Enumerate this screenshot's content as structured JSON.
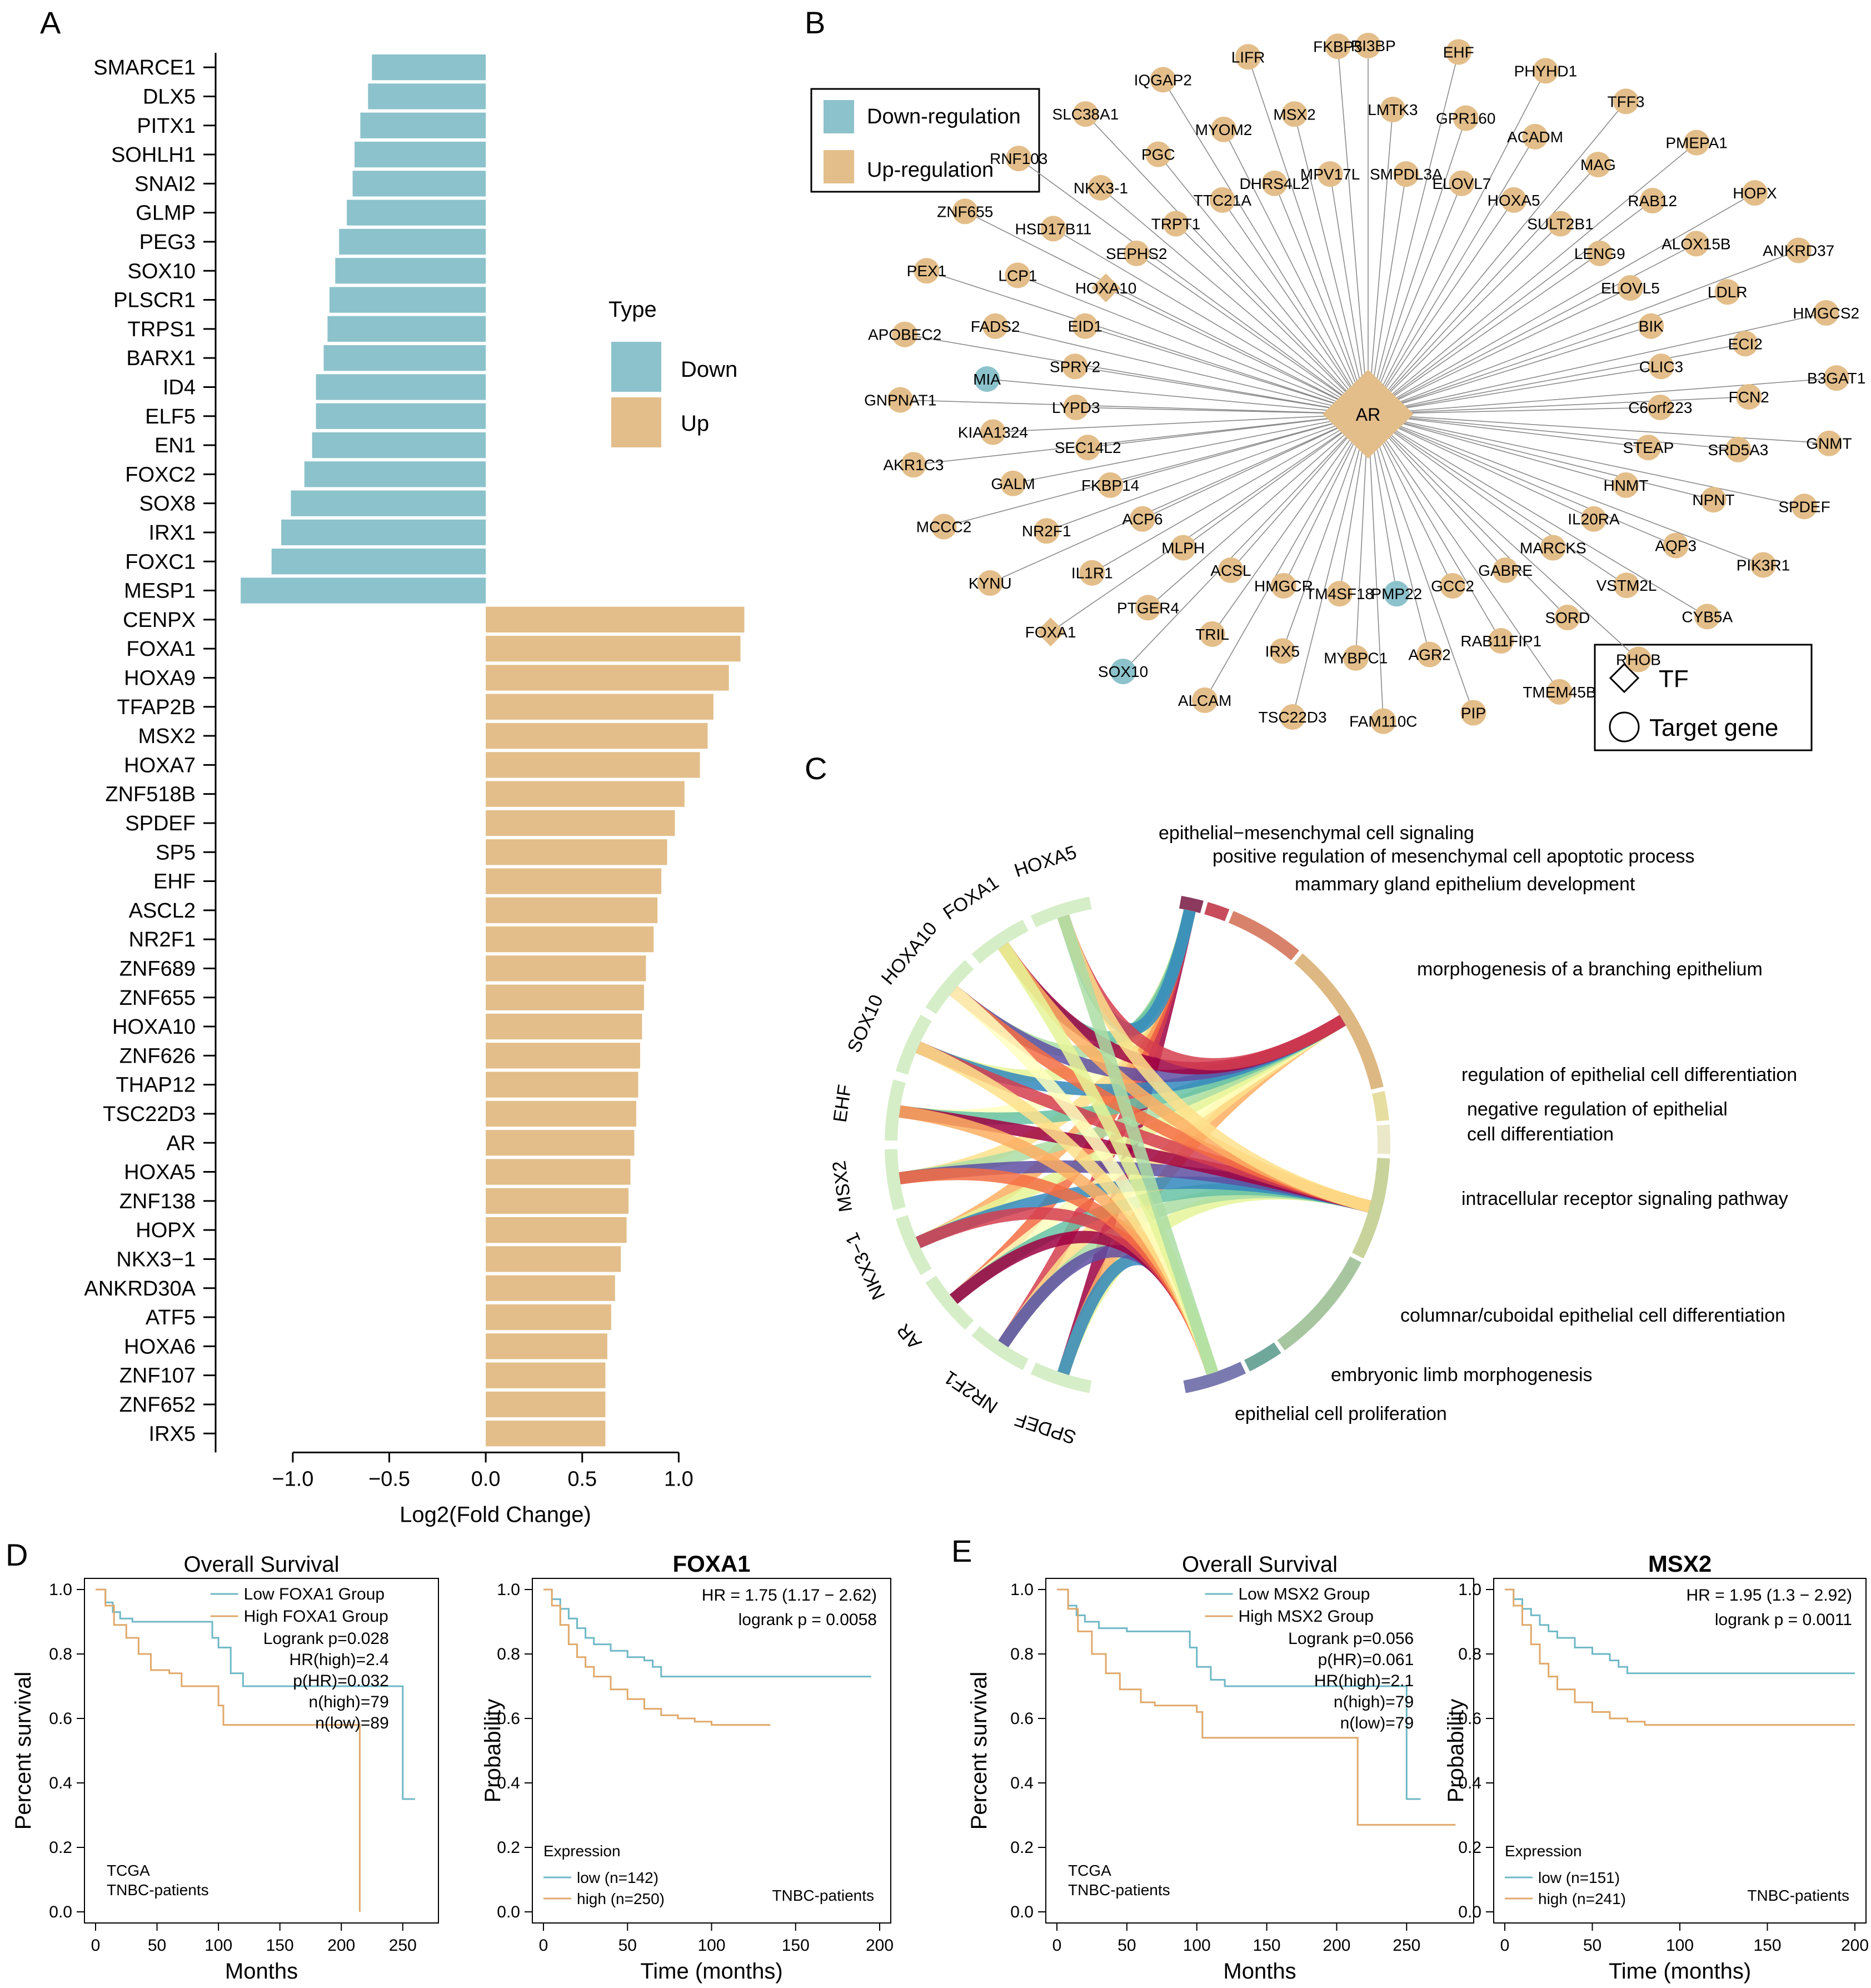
{
  "panels": {
    "a": {
      "letter": "A"
    },
    "b": {
      "letter": "B"
    },
    "c": {
      "letter": "C"
    },
    "d": {
      "letter": "D"
    },
    "e": {
      "letter": "E"
    }
  },
  "colors": {
    "down": "#8CC2CB",
    "up": "#E3BE8A",
    "km_low": "#6FB8C6",
    "km_high": "#E0A96B",
    "grid_dot": "#BBBBBB"
  },
  "legend_a": {
    "title": "Type",
    "down": "Down",
    "up": "Up"
  },
  "legend_b": {
    "down": "Down-regulation",
    "up": "Up-regulation",
    "tf": "TF",
    "target": "Target gene"
  },
  "network": {
    "hub": "AR",
    "targets": [
      "BRI3BP",
      "LMTK3",
      "SMPDL3A",
      "EHF",
      "GPR160",
      "ELOVL7",
      "PHYHD1",
      "ACADM",
      "HOXA5",
      "TFF3",
      "MAG",
      "SULT2B1",
      "PMEPA1",
      "RAB12",
      "LENG9",
      "HOPX",
      "ALOX15B",
      "ELOVL5",
      "ANKRD37",
      "LDLR",
      "BIK",
      "HMGCS2",
      "ECI2",
      "CLIC3",
      "B3GAT1",
      "FCN2",
      "C6orf223",
      "GNMT",
      "SRD5A3",
      "STEAP",
      "SPDEF",
      "NPNT",
      "HNMT",
      "PIK3R1",
      "AQP3",
      "IL20RA",
      "CYB5A",
      "VSTM2L",
      "MARCKS",
      "RHOB",
      "SORD",
      "GABRE",
      "TMEM45B",
      "RAB11FIP1",
      "GCC2",
      "PIP",
      "AGR2",
      "PMP22",
      "FAM110C",
      "MYBPC1",
      "TM4SF18",
      "TSC22D3",
      "IRX5",
      "HMGCR",
      "ALCAM",
      "TRIL",
      "ACSL",
      "SOX10",
      "PTGER4",
      "MLPH",
      "FOXA1",
      "IL1R1",
      "ACP6",
      "KYNU",
      "NR2F1",
      "FKBP14",
      "MCCC2",
      "GALM",
      "SEC14L2",
      "AKR1C3",
      "KIAA1324",
      "LYPD3",
      "GNPNAT1",
      "MIA",
      "SPRY2",
      "APOBEC2",
      "FADS2",
      "EID1",
      "PEX1",
      "LCP1",
      "HOXA10",
      "ZNF655",
      "HSD17B11",
      "SEPHS2",
      "RNF103",
      "NKX3-1",
      "TRPT1",
      "SLC38A1",
      "PGC",
      "TTC21A",
      "IQGAP2",
      "MYOM2",
      "DHRS4L2",
      "LIFR",
      "MSX2",
      "MPV17L",
      "FKBP5"
    ],
    "down_nodes": [
      "PMP22",
      "SOX10",
      "MIA"
    ],
    "tf_nodes": [
      "AR",
      "FOXA1",
      "HOXA10"
    ]
  },
  "chord": {
    "genes": [
      "SPDEF",
      "NR2F1",
      "AR",
      "NKX3−1",
      "MSX2",
      "EHF",
      "SOX10",
      "HOXA10",
      "FOXA1",
      "HOXA5"
    ],
    "terms": [
      "epithelial−mesenchymal cell signaling",
      "positive regulation of mesenchymal cell apoptotic process",
      "mammary gland epithelium development",
      "morphogenesis of a branching epithelium",
      "regulation of epithelial cell differentiation",
      "negative regulation of epithelial",
      "cell differentiation",
      "intracellular receptor signaling pathway",
      "columnar/cuboidal epithelial cell differentiation",
      "embryonic limb morphogenesis",
      "epithelial cell proliferation"
    ]
  },
  "km_text": {
    "d1": {
      "title": "Overall Survival",
      "legend_low": "Low FOXA1 Group",
      "legend_high": "High FOXA1 Group",
      "stats": [
        "Logrank p=0.028",
        "HR(high)=2.4",
        "p(HR)=0.032",
        "n(high)=79",
        "n(low)=89"
      ],
      "ylabel": "Percent survival",
      "xlabel": "Months",
      "note1": "TCGA",
      "note2": "TNBC-patients"
    },
    "d2": {
      "title": "FOXA1",
      "stats": [
        "HR = 1.75 (1.17 − 2.62)",
        "logrank p = 0.0058"
      ],
      "ylabel": "Probability",
      "xlabel": "Time (months)",
      "legend_title": "Expression",
      "legend_low": "low (n=142)",
      "legend_high": "high (n=250)",
      "note": "TNBC-patients"
    },
    "e1": {
      "title": "Overall Survival",
      "legend_low": "Low MSX2 Group",
      "legend_high": "High MSX2 Group",
      "stats": [
        "Logrank p=0.056",
        "p(HR)=0.061",
        "HR(high)=2.1",
        "n(high)=79",
        "n(low)=79"
      ],
      "ylabel": "Percent survival",
      "xlabel": "Months",
      "note1": "TCGA",
      "note2": "TNBC-patients"
    },
    "e2": {
      "title": "MSX2",
      "stats": [
        "HR = 1.95 (1.3 − 2.92)",
        "logrank p = 0.0011"
      ],
      "ylabel": "Probability",
      "xlabel": "Time (months)",
      "legend_title": "Expression",
      "legend_low": "low (n=151)",
      "legend_high": "high (n=241)",
      "note": "TNBC-patients"
    }
  },
  "chart_data": [
    {
      "type": "bar",
      "orientation": "horizontal",
      "xlabel": "Log2(Fold Change)",
      "xlim": [
        -1.4,
        1.5
      ],
      "xticks": [
        "−1.0",
        "−0.5",
        "0.0",
        "0.5",
        "1.0"
      ],
      "xtick_values": [
        -1.0,
        -0.5,
        0.0,
        0.5,
        1.0
      ],
      "categories": [
        "SMARCE1",
        "DLX5",
        "PITX1",
        "SOHLH1",
        "SNAI2",
        "GLMP",
        "PEG3",
        "SOX10",
        "PLSCR1",
        "TRPS1",
        "BARX1",
        "ID4",
        "ELF5",
        "EN1",
        "FOXC2",
        "SOX8",
        "IRX1",
        "FOXC1",
        "MESP1",
        "CENPX",
        "FOXA1",
        "HOXA9",
        "TFAP2B",
        "MSX2",
        "HOXA7",
        "ZNF518B",
        "SPDEF",
        "SP5",
        "EHF",
        "ASCL2",
        "NR2F1",
        "ZNF689",
        "ZNF655",
        "HOXA10",
        "ZNF626",
        "THAP12",
        "TSC22D3",
        "AR",
        "HOXA5",
        "ZNF138",
        "HOPX",
        "NKX3−1",
        "ANKRD30A",
        "ATF5",
        "HOXA6",
        "ZNF107",
        "ZNF652",
        "IRX5"
      ],
      "values": [
        -0.59,
        -0.61,
        -0.65,
        -0.68,
        -0.69,
        -0.72,
        -0.76,
        -0.78,
        -0.81,
        -0.82,
        -0.84,
        -0.88,
        -0.88,
        -0.9,
        -0.94,
        -1.01,
        -1.06,
        -1.11,
        -1.27,
        1.34,
        1.32,
        1.26,
        1.18,
        1.15,
        1.11,
        1.03,
        0.98,
        0.94,
        0.91,
        0.89,
        0.87,
        0.83,
        0.82,
        0.81,
        0.8,
        0.79,
        0.78,
        0.77,
        0.75,
        0.74,
        0.73,
        0.7,
        0.67,
        0.65,
        0.63,
        0.62,
        0.62,
        0.62
      ],
      "types": [
        "Down",
        "Down",
        "Down",
        "Down",
        "Down",
        "Down",
        "Down",
        "Down",
        "Down",
        "Down",
        "Down",
        "Down",
        "Down",
        "Down",
        "Down",
        "Down",
        "Down",
        "Down",
        "Down",
        "Up",
        "Up",
        "Up",
        "Up",
        "Up",
        "Up",
        "Up",
        "Up",
        "Up",
        "Up",
        "Up",
        "Up",
        "Up",
        "Up",
        "Up",
        "Up",
        "Up",
        "Up",
        "Up",
        "Up",
        "Up",
        "Up",
        "Up",
        "Up",
        "Up",
        "Up",
        "Up",
        "Up",
        "Up"
      ]
    },
    {
      "type": "line",
      "name": "D-left",
      "xlabel": "Months",
      "ylabel": "Percent survival",
      "xlim": [
        0,
        270
      ],
      "ylim": [
        0,
        1.0
      ],
      "xticks": [
        0,
        50,
        100,
        150,
        200,
        250
      ],
      "yticks": [
        0.0,
        0.2,
        0.4,
        0.6,
        0.8,
        1.0
      ],
      "series": [
        {
          "name": "Low FOXA1 Group",
          "x": [
            0,
            8,
            14,
            20,
            30,
            50,
            95,
            100,
            110,
            120,
            240,
            250,
            260
          ],
          "y": [
            1.0,
            0.96,
            0.93,
            0.91,
            0.9,
            0.9,
            0.85,
            0.82,
            0.74,
            0.7,
            0.7,
            0.35,
            0.35
          ]
        },
        {
          "name": "High FOXA1 Group",
          "x": [
            0,
            8,
            15,
            25,
            35,
            45,
            60,
            70,
            100,
            104,
            200,
            214,
            215
          ],
          "y": [
            1.0,
            0.95,
            0.89,
            0.85,
            0.8,
            0.75,
            0.74,
            0.7,
            0.64,
            0.58,
            0.58,
            0.58,
            0.0
          ]
        }
      ]
    },
    {
      "type": "line",
      "name": "D-right",
      "xlabel": "Time (months)",
      "ylabel": "Probability",
      "xlim": [
        0,
        200
      ],
      "ylim": [
        0,
        1.0
      ],
      "xticks": [
        0,
        50,
        100,
        150,
        200
      ],
      "yticks": [
        0.0,
        0.2,
        0.4,
        0.6,
        0.8,
        1.0
      ],
      "series": [
        {
          "name": "low (n=142)",
          "x": [
            0,
            5,
            10,
            15,
            20,
            25,
            30,
            40,
            50,
            60,
            65,
            70,
            80,
            195
          ],
          "y": [
            1.0,
            0.97,
            0.94,
            0.91,
            0.88,
            0.85,
            0.83,
            0.81,
            0.79,
            0.78,
            0.76,
            0.73,
            0.73,
            0.73
          ]
        },
        {
          "name": "high (n=250)",
          "x": [
            0,
            5,
            10,
            15,
            20,
            25,
            30,
            40,
            50,
            60,
            70,
            80,
            90,
            100,
            135
          ],
          "y": [
            1.0,
            0.95,
            0.89,
            0.83,
            0.79,
            0.76,
            0.73,
            0.69,
            0.66,
            0.63,
            0.61,
            0.6,
            0.59,
            0.58,
            0.58
          ]
        }
      ]
    },
    {
      "type": "line",
      "name": "E-left",
      "xlabel": "Months",
      "ylabel": "Percent survival",
      "xlim": [
        0,
        290
      ],
      "ylim": [
        0,
        1.0
      ],
      "xticks": [
        0,
        50,
        100,
        150,
        200,
        250
      ],
      "yticks": [
        0.0,
        0.2,
        0.4,
        0.6,
        0.8,
        1.0
      ],
      "series": [
        {
          "name": "Low MSX2 Group",
          "x": [
            0,
            8,
            14,
            20,
            30,
            50,
            95,
            100,
            110,
            120,
            240,
            250,
            260
          ],
          "y": [
            1.0,
            0.95,
            0.92,
            0.9,
            0.88,
            0.87,
            0.82,
            0.76,
            0.72,
            0.7,
            0.7,
            0.35,
            0.35
          ]
        },
        {
          "name": "High MSX2 Group",
          "x": [
            0,
            8,
            15,
            25,
            35,
            45,
            60,
            70,
            100,
            104,
            200,
            215,
            285
          ],
          "y": [
            1.0,
            0.94,
            0.87,
            0.8,
            0.74,
            0.69,
            0.65,
            0.64,
            0.62,
            0.54,
            0.54,
            0.27,
            0.27
          ]
        }
      ]
    },
    {
      "type": "line",
      "name": "E-right",
      "xlabel": "Time (months)",
      "ylabel": "Probability",
      "xlim": [
        0,
        200
      ],
      "ylim": [
        0,
        1.0
      ],
      "xticks": [
        0,
        50,
        100,
        150,
        200
      ],
      "yticks": [
        0.0,
        0.2,
        0.4,
        0.6,
        0.8,
        1.0
      ],
      "series": [
        {
          "name": "low (n=151)",
          "x": [
            0,
            5,
            10,
            15,
            20,
            25,
            30,
            40,
            50,
            60,
            65,
            70,
            80,
            200
          ],
          "y": [
            1.0,
            0.97,
            0.94,
            0.92,
            0.89,
            0.87,
            0.85,
            0.82,
            0.8,
            0.78,
            0.76,
            0.74,
            0.74,
            0.74
          ]
        },
        {
          "name": "high (n=241)",
          "x": [
            0,
            5,
            10,
            15,
            20,
            25,
            30,
            40,
            50,
            60,
            70,
            80,
            90,
            100,
            200
          ],
          "y": [
            1.0,
            0.95,
            0.89,
            0.83,
            0.77,
            0.73,
            0.69,
            0.65,
            0.62,
            0.6,
            0.59,
            0.58,
            0.58,
            0.58,
            0.58
          ]
        }
      ]
    }
  ]
}
